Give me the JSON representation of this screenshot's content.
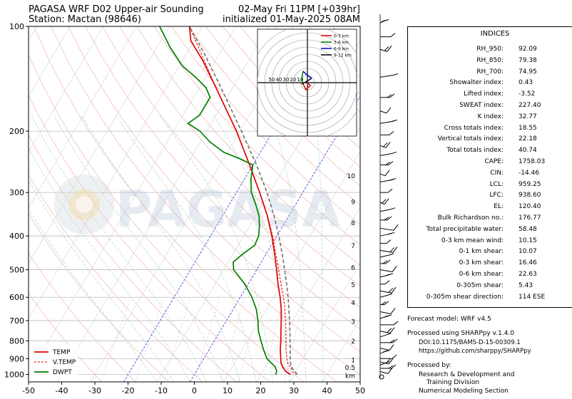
{
  "header": {
    "title_left_1": "PAGASA WRF D02 Upper-air Sounding",
    "title_left_2": "Station: Mactan (98646)",
    "title_right_1": "02-May Fri 11PM [+039hr]",
    "title_right_2": "initialized 01-May-2025 08AM"
  },
  "watermark": "PAGASA",
  "chart_data": {
    "type": "line",
    "subtype": "skew-t log-p sounding",
    "xlim": [
      -50,
      50
    ],
    "ylim": [
      1050,
      100
    ],
    "yscale": "log",
    "x_ticks": [
      "-50",
      "-40",
      "-30",
      "-20",
      "-10",
      "0",
      "10",
      "20",
      "30",
      "40",
      "50"
    ],
    "y_ticks": [
      "100",
      "200",
      "300",
      "400",
      "500",
      "600",
      "700",
      "800",
      "900",
      "1000"
    ],
    "legend": {
      "placement": "lower-left",
      "entries": [
        {
          "label": "TEMP",
          "color": "#e00000",
          "style": "solid"
        },
        {
          "label": "V.TEMP",
          "color": "#e00000",
          "style": "dashed"
        },
        {
          "label": "DWPT",
          "color": "#008000",
          "style": "solid"
        }
      ]
    },
    "series": [
      {
        "name": "TEMP",
        "color": "#e00000",
        "points": [
          [
            1000,
            29
          ],
          [
            980,
            27
          ],
          [
            950,
            25.2
          ],
          [
            925,
            24
          ],
          [
            900,
            23.2
          ],
          [
            850,
            21.5
          ],
          [
            800,
            20
          ],
          [
            750,
            18.3
          ],
          [
            700,
            16.5
          ],
          [
            650,
            14.5
          ],
          [
            600,
            12
          ],
          [
            550,
            9
          ],
          [
            500,
            6
          ],
          [
            450,
            2.5
          ],
          [
            400,
            -1.5
          ],
          [
            350,
            -6.5
          ],
          [
            300,
            -13
          ],
          [
            250,
            -21
          ],
          [
            200,
            -31
          ],
          [
            175,
            -37.5
          ],
          [
            150,
            -45
          ],
          [
            125,
            -54
          ],
          [
            110,
            -61
          ],
          [
            100,
            -64
          ]
        ]
      },
      {
        "name": "V.TEMP",
        "color": "#e00000",
        "dashed": true,
        "points": [
          [
            1000,
            31
          ],
          [
            980,
            29
          ],
          [
            950,
            27.5
          ],
          [
            925,
            26
          ],
          [
            900,
            25
          ],
          [
            850,
            23.2
          ],
          [
            800,
            21.6
          ],
          [
            750,
            19.8
          ],
          [
            700,
            17.8
          ],
          [
            650,
            15.6
          ],
          [
            600,
            13
          ],
          [
            550,
            9.9
          ],
          [
            500,
            6.6
          ],
          [
            450,
            2.9
          ],
          [
            400,
            -1.3
          ],
          [
            350,
            -6.4
          ],
          [
            300,
            -13
          ],
          [
            250,
            -21
          ],
          [
            200,
            -31
          ],
          [
            150,
            -45
          ],
          [
            100,
            -64
          ]
        ]
      },
      {
        "name": "DWPT",
        "color": "#008000",
        "points": [
          [
            1000,
            24.5
          ],
          [
            980,
            24.3
          ],
          [
            950,
            23
          ],
          [
            925,
            21
          ],
          [
            900,
            19
          ],
          [
            850,
            16.5
          ],
          [
            800,
            14
          ],
          [
            750,
            11.5
          ],
          [
            700,
            9.5
          ],
          [
            650,
            7
          ],
          [
            600,
            3.5
          ],
          [
            550,
            -1
          ],
          [
            520,
            -4.5
          ],
          [
            500,
            -7
          ],
          [
            475,
            -8.5
          ],
          [
            450,
            -7
          ],
          [
            425,
            -5
          ],
          [
            400,
            -5.5
          ],
          [
            375,
            -7
          ],
          [
            350,
            -9
          ],
          [
            325,
            -12
          ],
          [
            300,
            -15.5
          ],
          [
            275,
            -18
          ],
          [
            250,
            -20
          ],
          [
            240,
            -25
          ],
          [
            230,
            -31
          ],
          [
            215,
            -37
          ],
          [
            200,
            -42
          ],
          [
            190,
            -47
          ],
          [
            180,
            -45
          ],
          [
            160,
            -45
          ],
          [
            150,
            -48
          ],
          [
            140,
            -53
          ],
          [
            130,
            -59
          ],
          [
            115,
            -66
          ],
          [
            100,
            -73
          ]
        ]
      },
      {
        "name": "Parcel",
        "color": "#707070",
        "dashed": true,
        "points": [
          [
            1000,
            31
          ],
          [
            980,
            29.8
          ],
          [
            950,
            27.8
          ],
          [
            925,
            26.9
          ],
          [
            900,
            26
          ],
          [
            850,
            24.5
          ],
          [
            800,
            22.8
          ],
          [
            750,
            21
          ],
          [
            700,
            19
          ],
          [
            650,
            16.8
          ],
          [
            600,
            14.4
          ],
          [
            550,
            11.6
          ],
          [
            500,
            8.4
          ],
          [
            450,
            4.8
          ],
          [
            400,
            0.6
          ],
          [
            350,
            -4.5
          ],
          [
            300,
            -10.8
          ],
          [
            250,
            -18.9
          ],
          [
            200,
            -29.5
          ],
          [
            150,
            -43.5
          ],
          [
            120,
            -54.5
          ],
          [
            100,
            -64
          ]
        ]
      }
    ],
    "height_labels": [
      {
        "p": 268,
        "label": "10"
      },
      {
        "p": 318,
        "label": "9"
      },
      {
        "p": 365,
        "label": "8"
      },
      {
        "p": 425,
        "label": "7"
      },
      {
        "p": 490,
        "label": "6"
      },
      {
        "p": 550,
        "label": "5"
      },
      {
        "p": 620,
        "label": "4"
      },
      {
        "p": 702,
        "label": "3"
      },
      {
        "p": 798,
        "label": "2"
      },
      {
        "p": 905,
        "label": "1"
      },
      {
        "p": 950,
        "label": "0.5"
      },
      {
        "p": 1005,
        "label": "km"
      }
    ],
    "hodograph": {
      "ring_labels": [
        "50",
        "40",
        "30",
        "20",
        "10"
      ],
      "legend": [
        {
          "label": "0-3 km",
          "color": "#e00000"
        },
        {
          "label": "3-6 km",
          "color": "#008000"
        },
        {
          "label": "6-9 km",
          "color": "#0000cc"
        },
        {
          "label": "9-12 km",
          "color": "#000000"
        }
      ],
      "segments": [
        {
          "color": "#e00000",
          "points": [
            [
              0,
              0
            ],
            [
              2,
              2
            ],
            [
              -1,
              5
            ],
            [
              -3,
              1
            ]
          ]
        },
        {
          "color": "#008000",
          "points": [
            [
              -3,
              1
            ],
            [
              -4,
              -3
            ],
            [
              -3,
              -8
            ]
          ]
        },
        {
          "color": "#0000cc",
          "points": [
            [
              -3,
              -8
            ],
            [
              -1,
              -6
            ],
            [
              3,
              -3
            ]
          ]
        },
        {
          "color": "#000000",
          "points": [
            [
              3,
              -3
            ],
            [
              -2,
              0
            ],
            [
              -4,
              1
            ]
          ]
        }
      ]
    }
  },
  "indices": {
    "title": "INDICES",
    "rows": [
      {
        "label": "RH_950:",
        "value": "92.09"
      },
      {
        "label": "RH_850:",
        "value": "79.38"
      },
      {
        "label": "RH_700:",
        "value": "74.95"
      },
      {
        "label": "Showalter index:",
        "value": "0.43"
      },
      {
        "label": "Lifted index:",
        "value": "-3.52"
      },
      {
        "label": "SWEAT index:",
        "value": "227.40"
      },
      {
        "label": "K index:",
        "value": "32.77"
      },
      {
        "label": "Cross totals index:",
        "value": "18.55"
      },
      {
        "label": "Vertical totals index:",
        "value": "22.18"
      },
      {
        "label": "Total totals index:",
        "value": "40.74"
      },
      {
        "label": "CAPE:",
        "value": "1758.03"
      },
      {
        "label": "CIN:",
        "value": "-14.46"
      },
      {
        "label": "LCL:",
        "value": "959.25"
      },
      {
        "label": "LFC:",
        "value": "938.60"
      },
      {
        "label": "EL:",
        "value": "120.40"
      },
      {
        "label": "Bulk Richardson no.:",
        "value": "176.77"
      },
      {
        "label": "Total precipitable water:",
        "value": "58.48"
      },
      {
        "label": "0-3 km mean wind:",
        "value": "10.15"
      },
      {
        "label": "0-1 km shear:",
        "value": "10.07"
      },
      {
        "label": "0-3 km shear:",
        "value": "16.46"
      },
      {
        "label": "0-6 km shear:",
        "value": "22.63"
      },
      {
        "label": "0-305m shear:",
        "value": "5.43"
      },
      {
        "label": "0-305m shear direction:",
        "value": "114 ESE"
      }
    ]
  },
  "footer": {
    "forecast_model": "Forecast model: WRF v4.5",
    "processed_using": "Processed using SHARPpy v.1.4.0",
    "doi": "DOI:10.1175/BAMS-D-15-00309.1",
    "github": "https://github.com/sharppy/SHARPpy",
    "processed_by": "Processed by:",
    "org_1": "Research & Development and",
    "org_2": "Training Division",
    "org_3": "Numerical Modeling Section"
  }
}
